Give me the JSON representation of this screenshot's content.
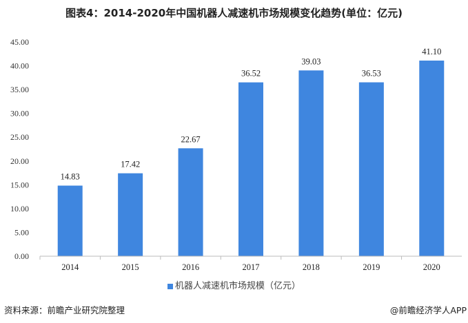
{
  "chart_data": {
    "type": "bar",
    "title": "图表4：2014-2020年中国机器人减速机市场规模变化趋势(单位：亿元)",
    "categories": [
      "2014",
      "2015",
      "2016",
      "2017",
      "2018",
      "2019",
      "2020"
    ],
    "series": [
      {
        "name": "机器人减速机市场规模（亿元）",
        "values": [
          14.83,
          17.42,
          22.67,
          36.52,
          39.03,
          36.53,
          41.1
        ],
        "color": "#3f86df"
      }
    ],
    "ylim": [
      0,
      45
    ],
    "yticks": [
      "0.00",
      "5.00",
      "10.00",
      "15.00",
      "20.00",
      "25.00",
      "30.00",
      "35.00",
      "40.00",
      "45.00"
    ],
    "grid": false,
    "legend_position": "bottom"
  },
  "footer": {
    "source": "资料来源：前瞻产业研究院整理",
    "credit": "@前瞻经济学人APP"
  }
}
